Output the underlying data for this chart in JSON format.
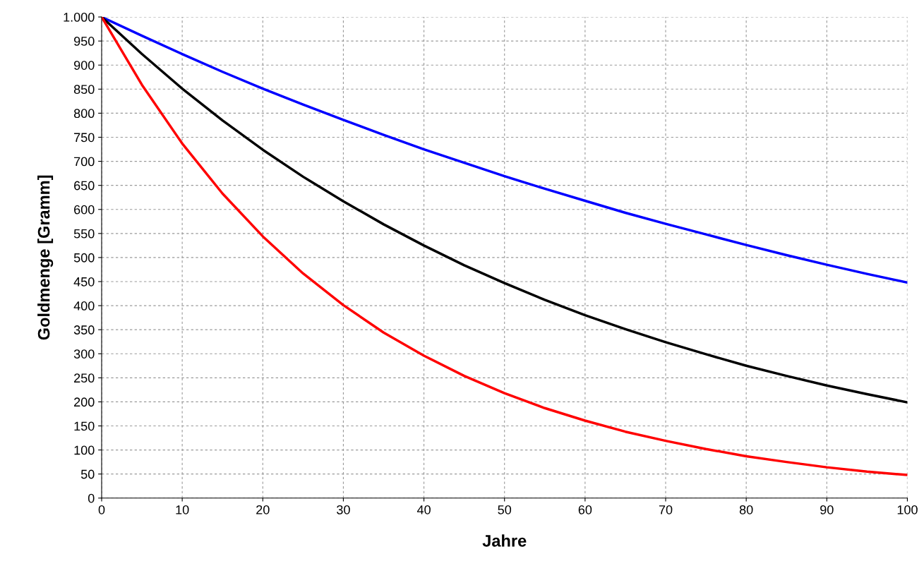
{
  "chart_data": {
    "type": "line",
    "xlabel": "Jahre",
    "ylabel": "Goldmenge [Gramm]",
    "x": [
      0,
      5,
      10,
      15,
      20,
      25,
      30,
      35,
      40,
      45,
      50,
      55,
      60,
      65,
      70,
      75,
      80,
      85,
      90,
      95,
      100
    ],
    "series": [
      {
        "color": "#0000ff",
        "values": [
          1000,
          961,
          923,
          886,
          851,
          818,
          786,
          755,
          725,
          697,
          669,
          643,
          618,
          593,
          570,
          548,
          526,
          505,
          485,
          466,
          448
        ]
      },
      {
        "color": "#000000",
        "values": [
          1000,
          923,
          851,
          785,
          724,
          668,
          617,
          569,
          525,
          484,
          447,
          412,
          380,
          351,
          324,
          299,
          275,
          254,
          234,
          216,
          199
        ]
      },
      {
        "color": "#ff0000",
        "values": [
          1000,
          859,
          737,
          633,
          544,
          467,
          401,
          344,
          296,
          254,
          218,
          187,
          161,
          138,
          119,
          102,
          87,
          75,
          64,
          55,
          48
        ]
      }
    ],
    "xlim": [
      0,
      100
    ],
    "xticks": [
      0,
      10,
      20,
      30,
      40,
      50,
      60,
      70,
      80,
      90,
      100
    ],
    "ylim": [
      0,
      1000
    ],
    "yticks": [
      0,
      50,
      100,
      150,
      200,
      250,
      300,
      350,
      400,
      450,
      500,
      550,
      600,
      650,
      700,
      750,
      800,
      850,
      900,
      950,
      {
        "value": 1000,
        "label": "1.000"
      }
    ],
    "grid": true,
    "marker": "none",
    "line_style": "solid"
  }
}
